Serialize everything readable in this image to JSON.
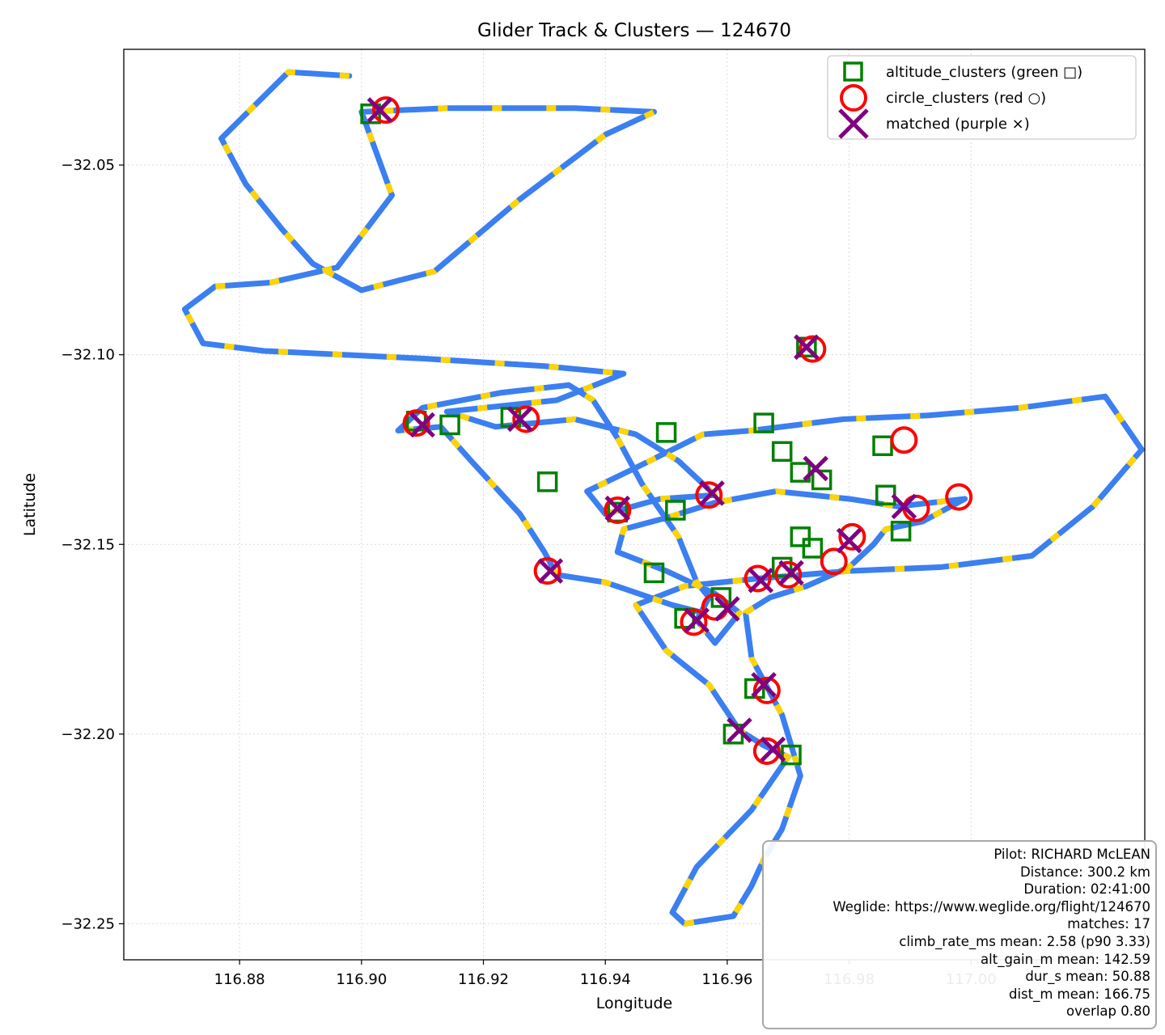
{
  "chart_data": {
    "type": "scatter",
    "title": "Glider Track & Clusters — 124670",
    "xlabel": "Longitude",
    "ylabel": "Latitude",
    "xlim": [
      116.861,
      117.0285
    ],
    "ylim": [
      -32.2595,
      -32.0195
    ],
    "grid": true,
    "xticks": [
      {
        "value": 116.88,
        "label": "116.88"
      },
      {
        "value": 116.9,
        "label": "116.90"
      },
      {
        "value": 116.92,
        "label": "116.92"
      },
      {
        "value": 116.94,
        "label": "116.94"
      },
      {
        "value": 116.96,
        "label": "116.96"
      },
      {
        "value": 116.98,
        "label": "116.98"
      },
      {
        "value": 117.0,
        "label": "117.00"
      }
    ],
    "yticks": [
      {
        "value": -32.05,
        "label": "−32.05"
      },
      {
        "value": -32.1,
        "label": "−32.10"
      },
      {
        "value": -32.15,
        "label": "−32.15"
      },
      {
        "value": -32.2,
        "label": "−32.20"
      },
      {
        "value": -32.25,
        "label": "−32.25"
      }
    ],
    "legend": {
      "position": "top-right",
      "entries": [
        {
          "label": "altitude_clusters (green □)",
          "marker": "square",
          "color": "#008000"
        },
        {
          "label": "circle_clusters (red ○)",
          "marker": "circle",
          "color": "#ff0000"
        },
        {
          "label": "matched (purple ×)",
          "marker": "x",
          "color": "#800080"
        }
      ]
    },
    "track_colors": {
      "cruise": "#3b7ff0",
      "climb": "#ffd400"
    },
    "track": [
      [
        116.898,
        -32.0265
      ],
      [
        116.888,
        -32.0255
      ],
      [
        116.877,
        -32.043
      ],
      [
        116.881,
        -32.055
      ],
      [
        116.887,
        -32.067
      ],
      [
        116.892,
        -32.076
      ],
      [
        116.9,
        -32.083
      ],
      [
        116.912,
        -32.078
      ],
      [
        116.926,
        -32.059
      ],
      [
        116.94,
        -32.042
      ],
      [
        116.948,
        -32.036
      ],
      [
        116.935,
        -32.035
      ],
      [
        116.914,
        -32.035
      ],
      [
        116.9,
        -32.036
      ],
      [
        116.905,
        -32.058
      ],
      [
        116.896,
        -32.077
      ],
      [
        116.885,
        -32.081
      ],
      [
        116.876,
        -32.082
      ],
      [
        116.871,
        -32.088
      ],
      [
        116.874,
        -32.097
      ],
      [
        116.884,
        -32.099
      ],
      [
        116.91,
        -32.101
      ],
      [
        116.93,
        -32.103
      ],
      [
        116.943,
        -32.105
      ],
      [
        116.932,
        -32.112
      ],
      [
        116.914,
        -32.115
      ],
      [
        116.922,
        -32.119
      ],
      [
        116.935,
        -32.117
      ],
      [
        116.945,
        -32.121
      ],
      [
        116.952,
        -32.128
      ],
      [
        116.958,
        -32.137
      ],
      [
        116.949,
        -32.138
      ],
      [
        116.94,
        -32.142
      ],
      [
        116.937,
        -32.136
      ],
      [
        116.946,
        -32.129
      ],
      [
        116.956,
        -32.121
      ],
      [
        116.964,
        -32.12
      ],
      [
        116.979,
        -32.117
      ],
      [
        116.993,
        -32.116
      ],
      [
        117.008,
        -32.114
      ],
      [
        117.022,
        -32.111
      ],
      [
        117.028,
        -32.125
      ],
      [
        117.02,
        -32.14
      ],
      [
        117.01,
        -32.153
      ],
      [
        116.995,
        -32.156
      ],
      [
        116.98,
        -32.157
      ],
      [
        116.965,
        -32.159
      ],
      [
        116.953,
        -32.161
      ],
      [
        116.945,
        -32.166
      ],
      [
        116.95,
        -32.178
      ],
      [
        116.957,
        -32.187
      ],
      [
        116.962,
        -32.199
      ],
      [
        116.966,
        -32.203
      ],
      [
        116.97,
        -32.206
      ],
      [
        116.964,
        -32.22
      ],
      [
        116.955,
        -32.235
      ],
      [
        116.951,
        -32.247
      ],
      [
        116.953,
        -32.25
      ],
      [
        116.961,
        -32.248
      ],
      [
        116.964,
        -32.24
      ],
      [
        116.966,
        -32.233
      ],
      [
        116.969,
        -32.225
      ],
      [
        116.972,
        -32.211
      ],
      [
        116.969,
        -32.195
      ],
      [
        116.964,
        -32.18
      ],
      [
        116.963,
        -32.168
      ],
      [
        116.967,
        -32.164
      ],
      [
        116.973,
        -32.161
      ],
      [
        116.98,
        -32.156
      ],
      [
        116.984,
        -32.15
      ],
      [
        116.986,
        -32.146
      ],
      [
        116.992,
        -32.144
      ],
      [
        116.999,
        -32.138
      ],
      [
        116.988,
        -32.14
      ],
      [
        116.98,
        -32.138
      ],
      [
        116.968,
        -32.136
      ],
      [
        116.958,
        -32.139
      ],
      [
        116.95,
        -32.143
      ],
      [
        116.943,
        -32.146
      ],
      [
        116.942,
        -32.152
      ],
      [
        116.95,
        -32.157
      ],
      [
        116.958,
        -32.163
      ],
      [
        116.962,
        -32.168
      ],
      [
        116.958,
        -32.176
      ],
      [
        116.955,
        -32.17
      ],
      [
        116.957,
        -32.164
      ],
      [
        116.955,
        -32.16
      ],
      [
        116.952,
        -32.148
      ],
      [
        116.946,
        -32.134
      ],
      [
        116.942,
        -32.122
      ],
      [
        116.938,
        -32.112
      ],
      [
        116.934,
        -32.108
      ],
      [
        116.923,
        -32.11
      ],
      [
        116.91,
        -32.114
      ],
      [
        116.906,
        -32.12
      ],
      [
        116.913,
        -32.119
      ],
      [
        116.918,
        -32.128
      ],
      [
        116.926,
        -32.142
      ],
      [
        116.93,
        -32.152
      ],
      [
        116.932,
        -32.158
      ],
      [
        116.94,
        -32.16
      ],
      [
        116.951,
        -32.166
      ],
      [
        116.956,
        -32.168
      ]
    ],
    "altitude_clusters": [
      {
        "lon": 116.9015,
        "lat": -32.0365
      },
      {
        "lon": 116.909,
        "lat": -32.1175
      },
      {
        "lon": 116.9145,
        "lat": -32.1185
      },
      {
        "lon": 116.9245,
        "lat": -32.1165
      },
      {
        "lon": 116.9305,
        "lat": -32.1335
      },
      {
        "lon": 116.95,
        "lat": -32.1205
      },
      {
        "lon": 116.966,
        "lat": -32.118
      },
      {
        "lon": 116.969,
        "lat": -32.1255
      },
      {
        "lon": 116.972,
        "lat": -32.131
      },
      {
        "lon": 116.942,
        "lat": -32.1415
      },
      {
        "lon": 116.9515,
        "lat": -32.141
      },
      {
        "lon": 116.973,
        "lat": -32.098
      },
      {
        "lon": 116.9755,
        "lat": -32.133
      },
      {
        "lon": 116.9855,
        "lat": -32.124
      },
      {
        "lon": 116.986,
        "lat": -32.137
      },
      {
        "lon": 116.9885,
        "lat": -32.1465
      },
      {
        "lon": 116.972,
        "lat": -32.148
      },
      {
        "lon": 116.974,
        "lat": -32.151
      },
      {
        "lon": 116.969,
        "lat": -32.156
      },
      {
        "lon": 116.953,
        "lat": -32.1695
      },
      {
        "lon": 116.959,
        "lat": -32.164
      },
      {
        "lon": 116.9645,
        "lat": -32.188
      },
      {
        "lon": 116.961,
        "lat": -32.2
      },
      {
        "lon": 116.9705,
        "lat": -32.2055
      },
      {
        "lon": 116.948,
        "lat": -32.1575
      }
    ],
    "circle_clusters": [
      {
        "lon": 116.904,
        "lat": -32.0355
      },
      {
        "lon": 116.909,
        "lat": -32.118
      },
      {
        "lon": 116.927,
        "lat": -32.117
      },
      {
        "lon": 116.9305,
        "lat": -32.157
      },
      {
        "lon": 116.942,
        "lat": -32.141
      },
      {
        "lon": 116.957,
        "lat": -32.137
      },
      {
        "lon": 116.974,
        "lat": -32.0985
      },
      {
        "lon": 116.989,
        "lat": -32.1225
      },
      {
        "lon": 116.998,
        "lat": -32.1375
      },
      {
        "lon": 116.991,
        "lat": -32.1405
      },
      {
        "lon": 116.9805,
        "lat": -32.148
      },
      {
        "lon": 116.9775,
        "lat": -32.1545
      },
      {
        "lon": 116.97,
        "lat": -32.158
      },
      {
        "lon": 116.965,
        "lat": -32.159
      },
      {
        "lon": 116.958,
        "lat": -32.1665
      },
      {
        "lon": 116.9545,
        "lat": -32.1705
      },
      {
        "lon": 116.9665,
        "lat": -32.1885
      },
      {
        "lon": 116.9665,
        "lat": -32.2045
      }
    ],
    "matched": [
      {
        "lon": 116.903,
        "lat": -32.0355
      },
      {
        "lon": 116.91,
        "lat": -32.1185
      },
      {
        "lon": 116.926,
        "lat": -32.117
      },
      {
        "lon": 116.931,
        "lat": -32.157
      },
      {
        "lon": 116.942,
        "lat": -32.1405
      },
      {
        "lon": 116.9575,
        "lat": -32.1365
      },
      {
        "lon": 116.973,
        "lat": -32.098
      },
      {
        "lon": 116.9745,
        "lat": -32.13
      },
      {
        "lon": 116.989,
        "lat": -32.14
      },
      {
        "lon": 116.98,
        "lat": -32.149
      },
      {
        "lon": 116.9705,
        "lat": -32.1575
      },
      {
        "lon": 116.9655,
        "lat": -32.1595
      },
      {
        "lon": 116.96,
        "lat": -32.167
      },
      {
        "lon": 116.955,
        "lat": -32.17
      },
      {
        "lon": 116.966,
        "lat": -32.187
      },
      {
        "lon": 116.962,
        "lat": -32.199
      },
      {
        "lon": 116.9675,
        "lat": -32.204
      }
    ]
  },
  "info_box": {
    "pilot": "Pilot: RICHARD McLEAN",
    "distance": "Distance: 300.2 km",
    "duration": "Duration: 02:41:00",
    "weglide": "Weglide: https://www.weglide.org/flight/124670",
    "matches": "matches: 17",
    "climb_rate": "climb_rate_ms mean: 2.58 (p90 3.33)",
    "alt_gain": "alt_gain_m mean: 142.59",
    "dur": "dur_s mean: 50.88",
    "dist": "dist_m mean: 166.75",
    "overlap": "overlap 0.80"
  }
}
